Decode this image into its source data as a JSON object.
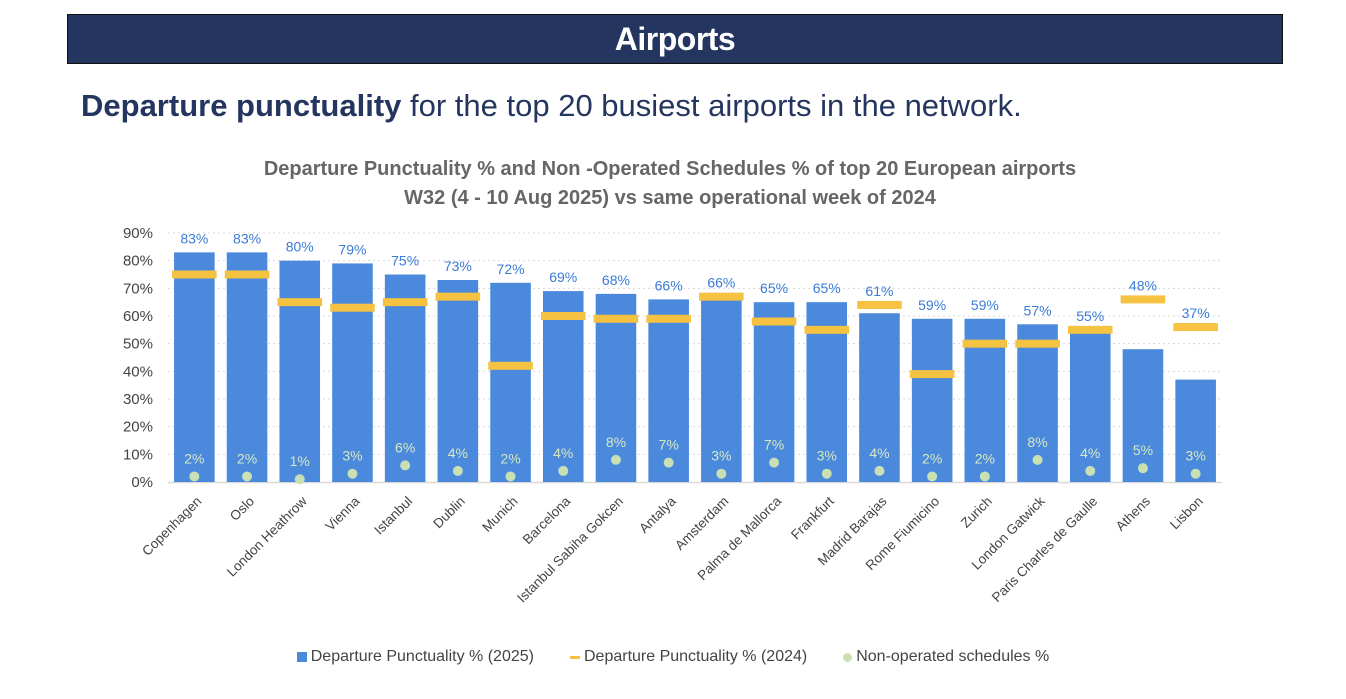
{
  "banner": {
    "title": "Airports"
  },
  "subtitle": {
    "bold": "Departure punctuality",
    "rest": " for the top 20 busiest airports in the network."
  },
  "legend": {
    "bar": "Departure Punctuality % (2025)",
    "line": "Departure Punctuality % (2024)",
    "dot": "Non-operated schedules %"
  },
  "colors": {
    "bar": "#4a89dc",
    "marker_2024": "#f5c242",
    "dot": "#c8e0b4",
    "label_bar": "#3a7bd5",
    "label_dot": "#d7e8c4"
  },
  "chart_data": {
    "type": "bar",
    "title": "Departure Punctuality % and Non -Operated Schedules % of top 20 European airports",
    "subtitle": "W32 (4 - 10 Aug 2025) vs same operational week of 2024",
    "xlabel": "",
    "ylabel": "",
    "ylim": [
      0,
      90
    ],
    "yticks": [
      "0%",
      "10%",
      "20%",
      "30%",
      "40%",
      "50%",
      "60%",
      "70%",
      "80%",
      "90%"
    ],
    "grid": true,
    "legend_position": "bottom",
    "categories": [
      "Copenhagen",
      "Oslo",
      "London Heathrow",
      "Vienna",
      "Istanbul",
      "Dublin",
      "Munich",
      "Barcelona",
      "Istanbul Sabiha Gokcen",
      "Antalya",
      "Amsterdam",
      "Palma de Mallorca",
      "Frankfurt",
      "Madrid Barajas",
      "Rome Fiumicino",
      "Zurich",
      "London Gatwick",
      "Paris Charles de Gaulle",
      "Athens",
      "Lisbon"
    ],
    "series": [
      {
        "name": "Departure Punctuality % (2025)",
        "kind": "bar",
        "values": [
          83,
          83,
          80,
          79,
          75,
          73,
          72,
          69,
          68,
          66,
          66,
          65,
          65,
          61,
          59,
          59,
          57,
          55,
          48,
          37
        ]
      },
      {
        "name": "Departure Punctuality % (2024)",
        "kind": "marker",
        "values": [
          75,
          75,
          65,
          63,
          65,
          67,
          42,
          60,
          59,
          59,
          67,
          58,
          55,
          64,
          39,
          50,
          50,
          55,
          66,
          56
        ]
      },
      {
        "name": "Non-operated schedules %",
        "kind": "dot",
        "values": [
          2,
          2,
          1,
          3,
          6,
          4,
          2,
          4,
          8,
          7,
          3,
          7,
          3,
          4,
          2,
          2,
          8,
          4,
          5,
          3
        ]
      }
    ]
  }
}
